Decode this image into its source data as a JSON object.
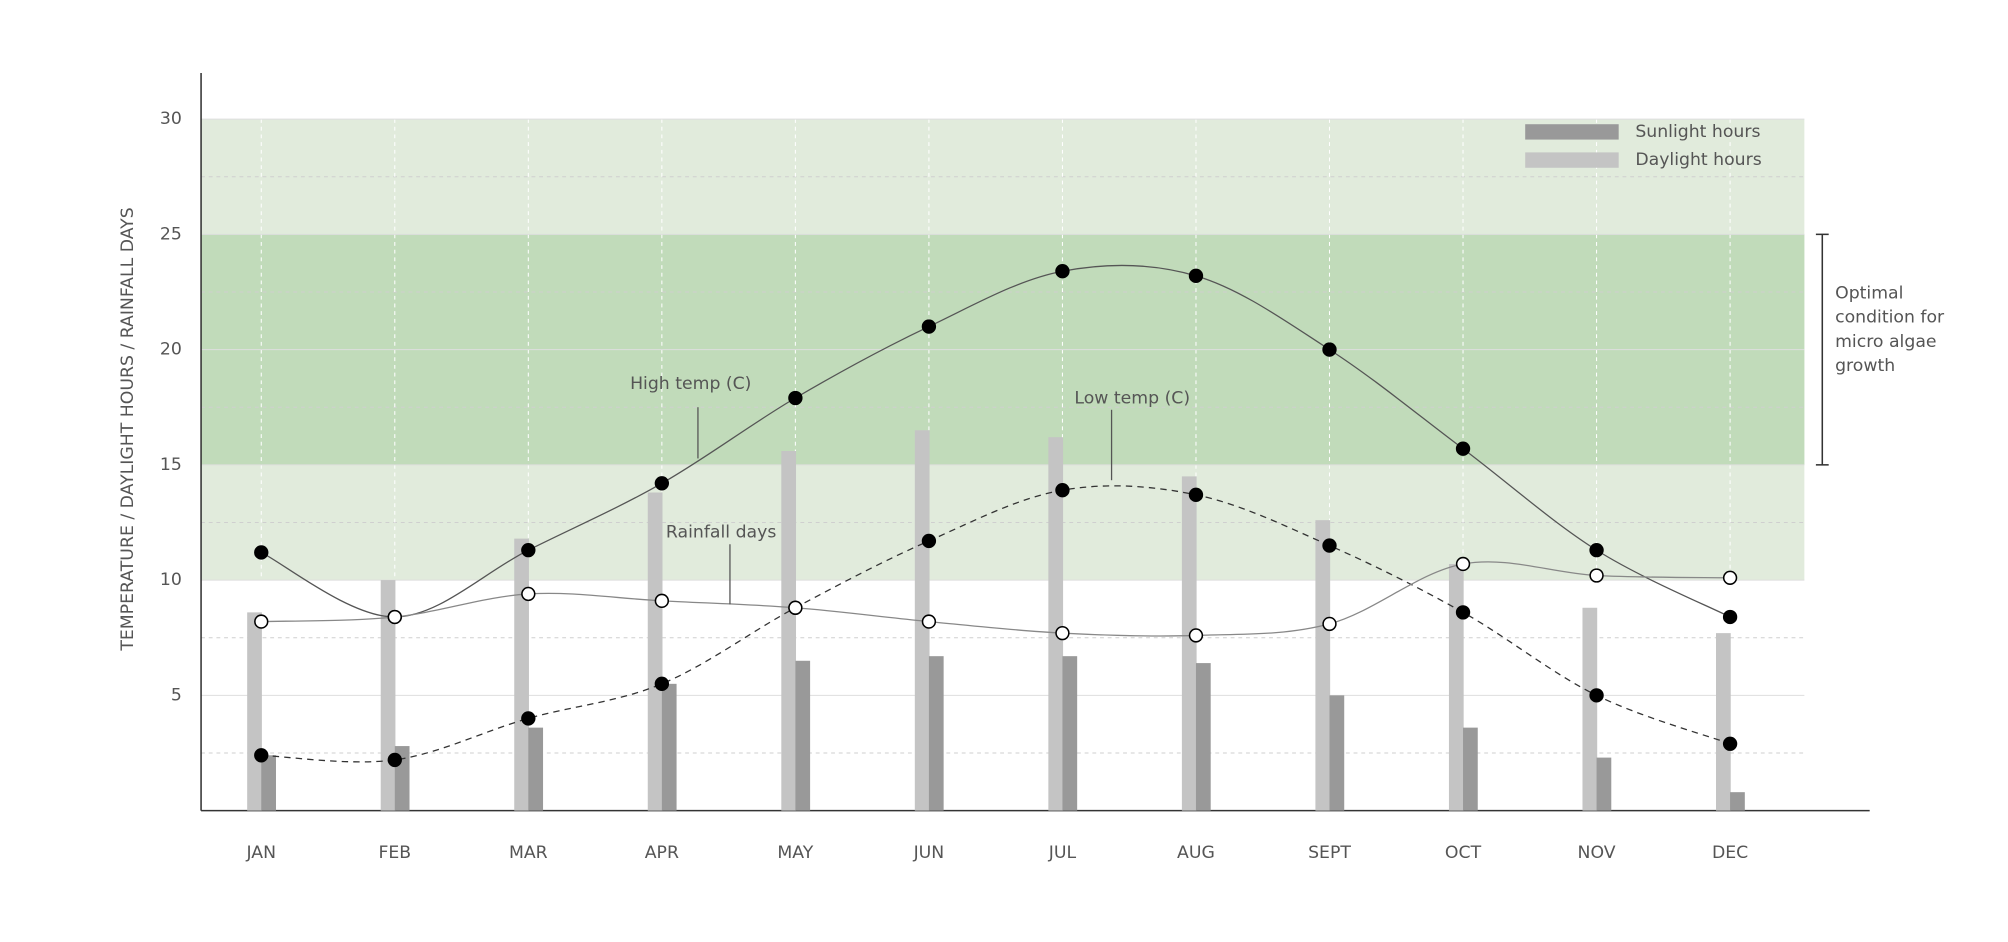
{
  "chart_data": {
    "type": "bar",
    "y_axis_label": "TEMPERATURE / DAYLIGHT HOURS / RAINFALL DAYS",
    "categories": [
      "JAN",
      "FEB",
      "MAR",
      "APR",
      "MAY",
      "JUN",
      "JUL",
      "AUG",
      "SEPT",
      "OCT",
      "NOV",
      "DEC"
    ],
    "ylim": [
      0,
      32
    ],
    "yticks": [
      5,
      10,
      15,
      20,
      25,
      30
    ],
    "minor_grid": [
      2.5,
      7.5,
      12.5,
      17.5,
      22.5,
      27.5
    ],
    "grid": true,
    "legend": "top-right",
    "bands": [
      {
        "range": [
          10,
          30
        ],
        "color": "#e1ebdc"
      },
      {
        "range": [
          15,
          25
        ],
        "color": "#c1dbba"
      }
    ],
    "bracket_note": [
      "Optimal",
      "condition for",
      "micro algae",
      "growth"
    ],
    "series": [
      {
        "name": "Daylight hours",
        "type": "bar",
        "color": "#c4c4c4",
        "values": [
          8.6,
          10.0,
          11.8,
          13.8,
          15.6,
          16.5,
          16.2,
          14.5,
          12.6,
          10.7,
          8.8,
          7.7
        ]
      },
      {
        "name": "Sunlight hours",
        "type": "bar",
        "color": "#999999",
        "values": [
          2.4,
          2.8,
          3.6,
          5.5,
          6.5,
          6.7,
          6.7,
          6.4,
          5.0,
          3.6,
          2.3,
          0.8
        ]
      },
      {
        "name": "High temp (C)",
        "type": "line",
        "color": "#555555",
        "marker": "filled",
        "dashed": false,
        "values": [
          11.2,
          8.4,
          11.3,
          14.2,
          17.9,
          21.0,
          23.4,
          23.2,
          20.0,
          15.7,
          11.3,
          8.4
        ]
      },
      {
        "name": "Low temp (C)",
        "type": "line",
        "color": "#333333",
        "marker": "filled",
        "dashed": true,
        "values": [
          2.4,
          2.2,
          4.0,
          5.5,
          8.8,
          11.7,
          13.9,
          13.7,
          11.5,
          8.6,
          5.0,
          2.9
        ]
      },
      {
        "name": "Rainfall days",
        "type": "line",
        "color": "#888888",
        "marker": "open",
        "dashed": false,
        "values": [
          8.2,
          8.4,
          9.4,
          9.1,
          8.8,
          8.2,
          7.7,
          7.6,
          8.1,
          10.7,
          10.2,
          10.1
        ]
      }
    ]
  }
}
